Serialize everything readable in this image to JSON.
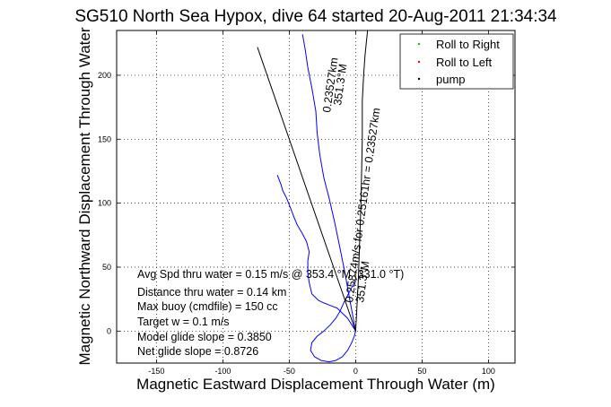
{
  "chart_data": {
    "type": "line",
    "title": "SG510 North Sea Hypox, dive 64 started 20-Aug-2011 21:34:34",
    "xlabel": "Magnetic Eastward Displacement Through Water (m)",
    "ylabel": "Magnetic Northward Displacement Through Water",
    "xlim": [
      -180,
      120
    ],
    "ylim": [
      -25,
      235
    ],
    "xticks": [
      -150,
      -100,
      -50,
      0,
      50,
      100
    ],
    "yticks": [
      0,
      50,
      100,
      150,
      200
    ],
    "grid": true,
    "legend_position": "top-right",
    "legend": [
      {
        "label": "Roll to Right",
        "color": "#00cc00",
        "marker": "dot"
      },
      {
        "label": "Roll to Left",
        "color": "#ff0000",
        "marker": "dot"
      },
      {
        "label": "pump",
        "color": "#000000",
        "marker": "dot"
      }
    ],
    "series": [
      {
        "color": "#0000ff",
        "x": [
          0,
          -1,
          -3,
          -6,
          -10,
          -15,
          -20,
          -26,
          -31,
          -34,
          -33,
          -29,
          -24,
          -19,
          -15,
          -12,
          -9,
          -6,
          -3,
          0
        ],
        "y": [
          0,
          -4,
          -9,
          -15,
          -20,
          -23,
          -24,
          -23,
          -20,
          -15,
          -9,
          -4,
          0,
          5,
          10,
          15,
          22,
          28,
          34,
          40
        ]
      },
      {
        "color": "#0000ff",
        "x": [
          0,
          -3,
          -6,
          -10,
          -14,
          -19,
          -24,
          -28,
          -33,
          -35,
          -36,
          -36,
          -35,
          -37,
          -40,
          -44,
          -46,
          -49,
          -52,
          -55,
          -56,
          -59
        ],
        "y": [
          0,
          5,
          10,
          14,
          18,
          20,
          22,
          24,
          29,
          38,
          45,
          55,
          62,
          70,
          76,
          83,
          88,
          96,
          104,
          110,
          114,
          122
        ]
      },
      {
        "color": "#0000ff",
        "x": [
          0,
          -4,
          -8,
          -12,
          -16,
          -20,
          -24,
          -27,
          -29,
          -30,
          -33,
          -36,
          -38,
          -40
        ],
        "y": [
          0,
          22,
          45,
          66,
          86,
          104,
          120,
          138,
          155,
          172,
          190,
          206,
          220,
          232
        ]
      },
      {
        "color": "#000000",
        "x": [
          0,
          -74
        ],
        "y": [
          0,
          222
        ]
      },
      {
        "color": "#000000",
        "x": [
          0,
          2,
          4,
          5,
          5,
          6,
          7,
          8,
          9
        ],
        "y": [
          0,
          40,
          100,
          150,
          180,
          200,
          215,
          225,
          235
        ]
      }
    ],
    "annotations": [
      "Avg Spd thru water =  0.15 m/s @ 353.4   °M (331.0 °T)",
      "Distance thru water =  0.14 km",
      "Max buoy (cmdfile) = 150 cc",
      "Target w = 0.1 m/s",
      "Model glide slope = 0.3850",
      "Net glide slope = 0.8726"
    ],
    "rotated_labels": [
      "0.23527km",
      "351.3°M",
      "0.25874m/s for 0.25161hr = 0.23527km",
      "351.3°M"
    ]
  }
}
